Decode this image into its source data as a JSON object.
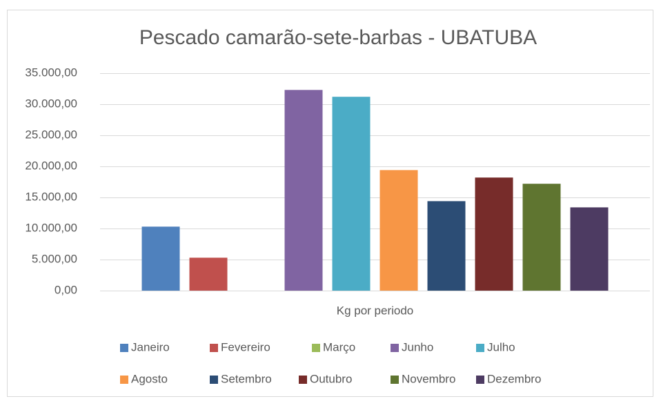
{
  "chart_data": {
    "type": "bar",
    "title": "Pescado camarão-sete-barbas - UBATUBA",
    "categories": [
      "Kg por periodo"
    ],
    "series": [
      {
        "name": "Janeiro",
        "color": "#4f81bd",
        "values": [
          10300
        ]
      },
      {
        "name": "Fevereiro",
        "color": "#c0504d",
        "values": [
          5300
        ]
      },
      {
        "name": "Março",
        "color": "#9bbb59",
        "values": [
          0
        ]
      },
      {
        "name": "Junho",
        "color": "#8064a2",
        "values": [
          32300
        ]
      },
      {
        "name": "Julho",
        "color": "#4bacc6",
        "values": [
          31200
        ]
      },
      {
        "name": "Agosto",
        "color": "#f79646",
        "values": [
          19400
        ]
      },
      {
        "name": "Setembro",
        "color": "#2c4d75",
        "values": [
          14400
        ]
      },
      {
        "name": "Outubro",
        "color": "#772c2a",
        "values": [
          18200
        ]
      },
      {
        "name": "Novembro",
        "color": "#5f7530",
        "values": [
          17200
        ]
      },
      {
        "name": "Dezembro",
        "color": "#4d3b62",
        "values": [
          13400
        ]
      }
    ],
    "ylim": [
      0,
      35000
    ],
    "yticks": [
      {
        "value": 0,
        "label": "0,00"
      },
      {
        "value": 5000,
        "label": "5.000,00"
      },
      {
        "value": 10000,
        "label": "10.000,00"
      },
      {
        "value": 15000,
        "label": "15.000,00"
      },
      {
        "value": 20000,
        "label": "20.000,00"
      },
      {
        "value": 25000,
        "label": "25.000,00"
      },
      {
        "value": 30000,
        "label": "30.000,00"
      },
      {
        "value": 35000,
        "label": "35.000,00"
      }
    ],
    "grid": true,
    "legend": "bottom"
  }
}
